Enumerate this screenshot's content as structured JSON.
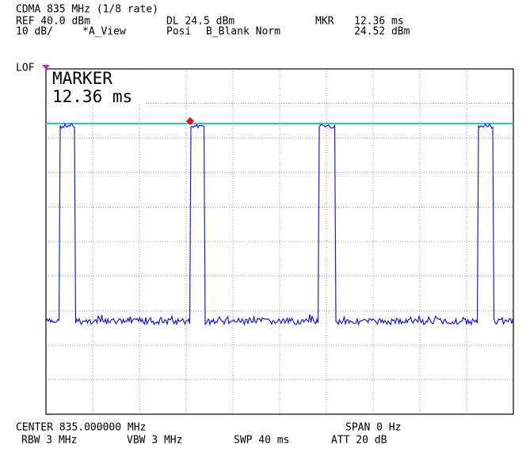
{
  "header": {
    "title": "CDMA 835 MHz (1/8 rate)",
    "ref": "REF 40.0 dBm",
    "display_line": "DL 24.5 dBm",
    "marker_label": "MKR",
    "marker_time": "12.36 ms",
    "scale": "10 dB/",
    "trace_a": "*A_View",
    "detector": "Posi",
    "trace_b": "B_Blank Norm",
    "marker_level": "24.52 dBm"
  },
  "side": {
    "lo_flag": "LOF"
  },
  "marker_box": {
    "title": "MARKER",
    "value": "12.36 ms"
  },
  "footer": {
    "center": "CENTER 835.000000 MHz",
    "span": "SPAN 0 Hz",
    "rbw": "RBW 3 MHz",
    "vbw": "VBW 3 MHz",
    "sweep": "SWP 40 ms",
    "attenuation": "ATT 20 dB"
  }
}
